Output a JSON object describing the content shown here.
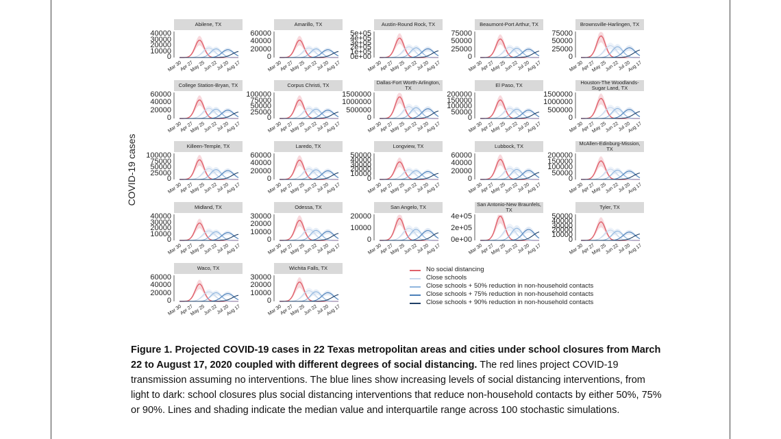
{
  "y_axis_label": "COVID-19 cases",
  "x_ticks": [
    "Mar 30",
    "Apr 27",
    "May 25",
    "Jun 22",
    "Jul 20",
    "Aug 17"
  ],
  "legend": [
    {
      "label": "No social distancing",
      "color": "#e0606a"
    },
    {
      "label": "Close schools",
      "color": "#c8d8ec"
    },
    {
      "label": "Close schools + 50% reduction in non-household contacts",
      "color": "#8fb5de"
    },
    {
      "label": "Close schools + 75% reduction in non-household contacts",
      "color": "#4a7fb8"
    },
    {
      "label": "Close schools + 90% reduction in non-household contacts",
      "color": "#1f3f66"
    }
  ],
  "caption": {
    "bold": "Figure 1. Projected COVID-19 cases in 22 Texas metropolitan areas and cities under school closures from March 22 to August 17, 2020 coupled with different degrees of social distancing.",
    "body": "The red lines project COVID-19 transmission assuming no interventions. The blue lines show increasing levels of social distancing interventions, from light to dark: school closures plus social distancing interventions that reduce non-household contacts by either 50%, 75% or 90%. Lines and shading indicate the median value and interquartile range across 100 stochastic simulations."
  },
  "chart_data": {
    "type": "line",
    "x_categories": [
      "Mar 30",
      "Apr 27",
      "May 25",
      "Jun 22",
      "Jul 20",
      "Aug 17"
    ],
    "series_names": [
      "No social distancing",
      "Close schools",
      "Close schools + 50% reduction in non-household contacts",
      "Close schools + 75% reduction in non-household contacts",
      "Close schools + 90% reduction in non-household contacts"
    ],
    "panels": [
      {
        "title": "Abilene, TX",
        "yticks": [
          "40000",
          "30000",
          "20000",
          "10000",
          "0"
        ],
        "ymax": 40000,
        "peak": 30000
      },
      {
        "title": "Amarillo, TX",
        "yticks": [
          "60000",
          "40000",
          "20000",
          "0"
        ],
        "ymax": 60000,
        "peak": 45000
      },
      {
        "title": "Austin-Round Rock, TX",
        "yticks": [
          "5e+05",
          "4e+05",
          "3e+05",
          "2e+05",
          "1e+05",
          "0e+00"
        ],
        "ymax": 500000,
        "peak": 420000
      },
      {
        "title": "Beaumont-Port Arthur, TX",
        "yticks": [
          "75000",
          "50000",
          "25000",
          "0"
        ],
        "ymax": 75000,
        "peak": 60000
      },
      {
        "title": "Brownsville-Harlingen, TX",
        "yticks": [
          "75000",
          "50000",
          "25000",
          "0"
        ],
        "ymax": 75000,
        "peak": 70000
      },
      {
        "title": "College Station-Bryan, TX",
        "yticks": [
          "60000",
          "40000",
          "20000",
          "0"
        ],
        "ymax": 60000,
        "peak": 48000
      },
      {
        "title": "Corpus Christi, TX",
        "yticks": [
          "100000",
          "75000",
          "50000",
          "25000",
          "0"
        ],
        "ymax": 100000,
        "peak": 80000
      },
      {
        "title": "Dallas-Fort Worth-Arlington, TX",
        "yticks": [
          "1500000",
          "1000000",
          "500000",
          "0"
        ],
        "ymax": 1500000,
        "peak": 1400000
      },
      {
        "title": "El Paso, TX",
        "yticks": [
          "200000",
          "150000",
          "100000",
          "50000",
          "0"
        ],
        "ymax": 200000,
        "peak": 160000
      },
      {
        "title": "Houston-The Woodlands-Sugar Land, TX",
        "yticks": [
          "1500000",
          "1000000",
          "500000",
          "0"
        ],
        "ymax": 1500000,
        "peak": 1300000
      },
      {
        "title": "Killeen-Temple, TX",
        "yticks": [
          "100000",
          "75000",
          "50000",
          "25000",
          "0"
        ],
        "ymax": 100000,
        "peak": 85000
      },
      {
        "title": "Laredo, TX",
        "yticks": [
          "60000",
          "40000",
          "20000",
          "0"
        ],
        "ymax": 60000,
        "peak": 50000
      },
      {
        "title": "Longview, TX",
        "yticks": [
          "50000",
          "40000",
          "30000",
          "20000",
          "10000",
          "0"
        ],
        "ymax": 50000,
        "peak": 38000
      },
      {
        "title": "Lubbock, TX",
        "yticks": [
          "60000",
          "40000",
          "20000",
          "0"
        ],
        "ymax": 60000,
        "peak": 52000
      },
      {
        "title": "McAllen-Edinburg-Mission, TX",
        "yticks": [
          "200000",
          "150000",
          "100000",
          "50000",
          "0"
        ],
        "ymax": 200000,
        "peak": 160000
      },
      {
        "title": "Midland, TX",
        "yticks": [
          "40000",
          "30000",
          "20000",
          "10000",
          "0"
        ],
        "ymax": 40000,
        "peak": 30000
      },
      {
        "title": "Odessa, TX",
        "yticks": [
          "30000",
          "20000",
          "10000",
          "0"
        ],
        "ymax": 30000,
        "peak": 26000
      },
      {
        "title": "San Angelo, TX",
        "yticks": [
          "20000",
          "10000",
          "0"
        ],
        "ymax": 20000,
        "peak": 19000
      },
      {
        "title": "San Antonio-New Braunfels, TX",
        "yticks": [
          "4e+05",
          "2e+05",
          "0e+00"
        ],
        "ymax": 400000,
        "peak": 420000
      },
      {
        "title": "Tyler, TX",
        "yticks": [
          "50000",
          "40000",
          "30000",
          "20000",
          "10000",
          "0"
        ],
        "ymax": 50000,
        "peak": 40000
      },
      {
        "title": "Waco, TX",
        "yticks": [
          "60000",
          "40000",
          "20000",
          "0"
        ],
        "ymax": 60000,
        "peak": 45000
      },
      {
        "title": "Wichita Falls, TX",
        "yticks": [
          "30000",
          "20000",
          "10000",
          "0"
        ],
        "ymax": 30000,
        "peak": 25000
      }
    ]
  }
}
